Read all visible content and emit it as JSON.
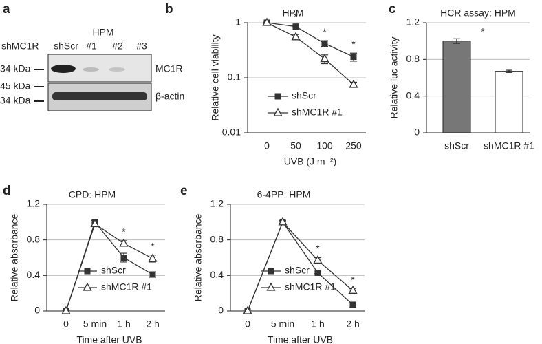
{
  "blot": {
    "label": "a",
    "title": "HPM",
    "row_label": "shMC1R",
    "lanes": [
      "shScr",
      "#1",
      "#2",
      "#3"
    ],
    "markers": [
      "34 kDa",
      "45 kDa",
      "34 kDa"
    ],
    "proteins": [
      "MC1R",
      "β-actin"
    ]
  },
  "chart_data": [
    {
      "type": "line",
      "label": "b",
      "title": "HPM",
      "x_label": "UVB (J m⁻²)",
      "y_label": "Relative cell viability",
      "yscale": "log",
      "categories": [
        "0",
        "50",
        "100",
        "250"
      ],
      "ylim": [
        0.01,
        1
      ],
      "yticks": [
        0.01,
        0.1,
        1
      ],
      "grid": true,
      "legend": "center left",
      "series": [
        {
          "name": "shScr",
          "color": "#333333",
          "marker": "square",
          "values": [
            1,
            0.85,
            0.42,
            0.24
          ],
          "errors": [
            0.02,
            0.04,
            0.05,
            0.04
          ]
        },
        {
          "name": "shMC1R #1",
          "color": "#333333",
          "marker": "triangle",
          "values": [
            1,
            0.55,
            0.22,
            0.075
          ],
          "errors": [
            0.02,
            0.06,
            0.04,
            0.008
          ]
        }
      ],
      "annotations": [
        {
          "text": "*",
          "x": "50"
        },
        {
          "text": "*",
          "x": "100"
        },
        {
          "text": "*",
          "x": "250"
        }
      ]
    },
    {
      "type": "bar",
      "label": "c",
      "title": "HCR assay: HPM",
      "y_label": "Relative luc activity",
      "categories": [
        "shScr",
        "shMC1R #1"
      ],
      "values": [
        1.0,
        0.67
      ],
      "errors": [
        0.025,
        0.012
      ],
      "colors": [
        "#777777",
        "#ffffff"
      ],
      "ylim": [
        0,
        1.2
      ],
      "yticks": [
        0,
        0.4,
        0.8,
        1.2
      ],
      "grid": true,
      "annotations": [
        {
          "text": "*"
        }
      ]
    },
    {
      "type": "line",
      "label": "d",
      "title": "CPD: HPM",
      "x_label": "Time after UVB",
      "y_label": "Relative absorbance",
      "categories": [
        "0",
        "5 min",
        "1 h",
        "2 h"
      ],
      "ylim": [
        0,
        1.2
      ],
      "yticks": [
        0,
        0.4,
        0.8,
        1.2
      ],
      "grid": true,
      "legend": "lower left",
      "series": [
        {
          "name": "shScr",
          "color": "#333333",
          "marker": "square",
          "values": [
            0,
            1.0,
            0.6,
            0.41
          ],
          "errors": [
            0,
            0.02,
            0.05,
            0.03
          ]
        },
        {
          "name": "shMC1R #1",
          "color": "#333333",
          "marker": "triangle",
          "values": [
            0,
            0.98,
            0.76,
            0.59
          ],
          "errors": [
            0,
            0.02,
            0.03,
            0.04
          ]
        }
      ],
      "annotations": [
        {
          "text": "*",
          "x": "1 h"
        },
        {
          "text": "*",
          "x": "2 h"
        }
      ]
    },
    {
      "type": "line",
      "label": "e",
      "title": "6-4PP: HPM",
      "x_label": "Time after UVB",
      "y_label": "Relative absorbance",
      "categories": [
        "0",
        "5 min",
        "1 h",
        "2 h"
      ],
      "ylim": [
        0,
        1.2
      ],
      "yticks": [
        0,
        0.4,
        0.8,
        1.2
      ],
      "grid": true,
      "legend": "lower left",
      "series": [
        {
          "name": "shScr",
          "color": "#333333",
          "marker": "square",
          "values": [
            0,
            1.0,
            0.43,
            0.07
          ],
          "errors": [
            0,
            0.015,
            0.01,
            0.03
          ]
        },
        {
          "name": "shMC1R #1",
          "color": "#333333",
          "marker": "triangle",
          "values": [
            0,
            1.0,
            0.57,
            0.23
          ],
          "errors": [
            0,
            0.015,
            0.03,
            0.02
          ]
        }
      ],
      "annotations": [
        {
          "text": "*",
          "x": "1 h"
        },
        {
          "text": "*",
          "x": "2 h"
        }
      ]
    }
  ]
}
